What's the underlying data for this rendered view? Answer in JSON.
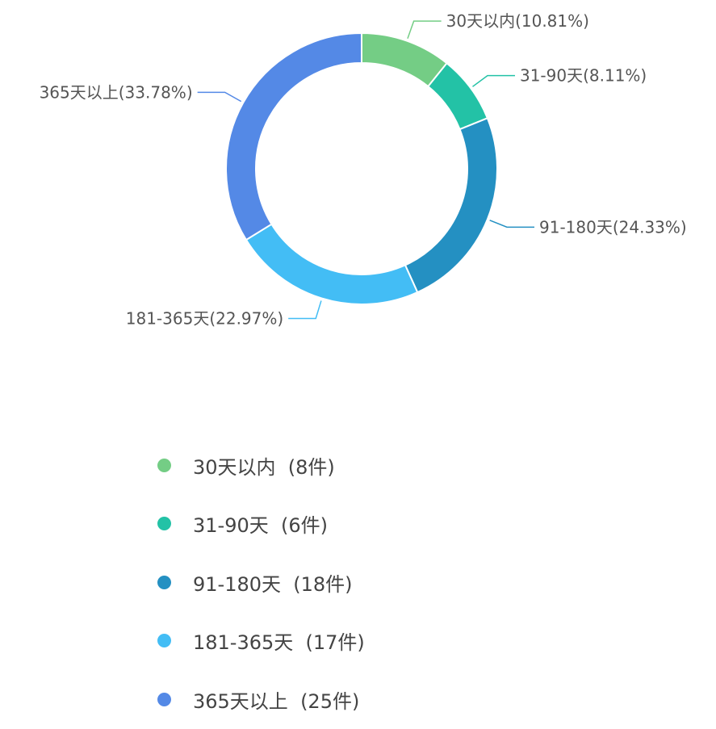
{
  "chart_data": {
    "type": "pie",
    "variant": "donut",
    "categories": [
      "30天以内",
      "31-90天",
      "91-180天",
      "181-365天",
      "365天以上"
    ],
    "values": [
      8,
      6,
      18,
      17,
      25
    ],
    "slice_labels": [
      "30天以内(10.81%)",
      "31-90天(8.11%)",
      "91-180天(24.33%)",
      "181-365天(22.97%)",
      "365天以上(33.78%)"
    ],
    "percentages": [
      10.81,
      8.11,
      24.33,
      22.97,
      33.78
    ],
    "colors": [
      "#74cd85",
      "#23c2a6",
      "#2490c2",
      "#43bdf5",
      "#5489e6"
    ],
    "legend": {
      "placement": "bottom",
      "items": [
        {
          "label": "30天以内  (8件)",
          "color": "#74cd85"
        },
        {
          "label": "31-90天  (6件)",
          "color": "#23c2a6"
        },
        {
          "label": "91-180天  (18件)",
          "color": "#2490c2"
        },
        {
          "label": "181-365天  (17件)",
          "color": "#43bdf5"
        },
        {
          "label": "365天以上  (25件)",
          "color": "#5489e6"
        }
      ]
    }
  }
}
